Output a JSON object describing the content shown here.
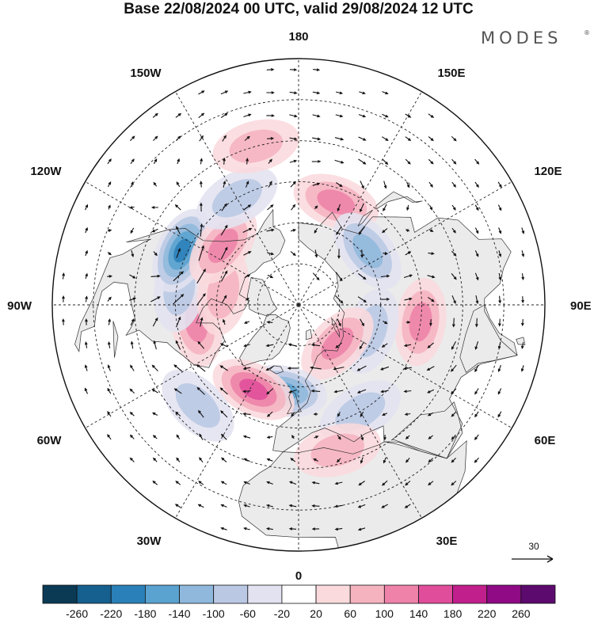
{
  "title": "Base 22/08/2024 00 UTC, valid 29/08/2024 12 UTC",
  "brand": {
    "name": "MODES",
    "mark": "®"
  },
  "longitude_labels": {
    "top": "180",
    "bottom": "0",
    "left": "90W",
    "right": "90E",
    "upper_left_1": "150W",
    "upper_left_2": "120W",
    "upper_right_1": "150E",
    "upper_right_2": "120E",
    "lower_left_1": "60W",
    "lower_left_2": "30W",
    "lower_right_1": "60E",
    "lower_right_2": "30E"
  },
  "reference_vector": {
    "label": "30"
  },
  "colorbar": {
    "ticks": [
      "-260",
      "-220",
      "-180",
      "-140",
      "-100",
      "-60",
      "-20",
      "20",
      "60",
      "100",
      "140",
      "180",
      "220",
      "260"
    ],
    "colors": [
      "#0b3a55",
      "#15608f",
      "#2a80b8",
      "#5aa2cf",
      "#8fb8dc",
      "#bac8e4",
      "#e2e2f0",
      "#ffffff",
      "#fadadd",
      "#f5b3c0",
      "#ee82a8",
      "#e04d9b",
      "#c01f8c",
      "#8f0a84",
      "#5c0a6e"
    ]
  },
  "map": {
    "land_color": "#ebebeb",
    "ocean_color": "#ffffff",
    "anomaly_centers": [
      {
        "lon": 160,
        "lat": 50,
        "value": 110
      },
      {
        "lon": 128,
        "lat": 58,
        "value": -130
      },
      {
        "lon": 82,
        "lat": 45,
        "value": 100
      },
      {
        "lon": 70,
        "lat": 62,
        "value": -60
      },
      {
        "lon": 45,
        "lat": 70,
        "value": 120
      },
      {
        "lon": 30,
        "lat": 45,
        "value": -80
      },
      {
        "lon": 15,
        "lat": 35,
        "value": 70
      },
      {
        "lon": -10,
        "lat": 58,
        "value": -140
      },
      {
        "lon": -28,
        "lat": 55,
        "value": 140
      },
      {
        "lon": -45,
        "lat": 38,
        "value": -60
      },
      {
        "lon": -80,
        "lat": 52,
        "value": 110
      },
      {
        "lon": -98,
        "lat": 46,
        "value": -60
      },
      {
        "lon": -100,
        "lat": 62,
        "value": 60
      },
      {
        "lon": -115,
        "lat": 43,
        "value": -200
      },
      {
        "lon": -128,
        "lat": 55,
        "value": 120
      },
      {
        "lon": -150,
        "lat": 45,
        "value": -60
      },
      {
        "lon": -165,
        "lat": 30,
        "value": 60
      }
    ]
  }
}
